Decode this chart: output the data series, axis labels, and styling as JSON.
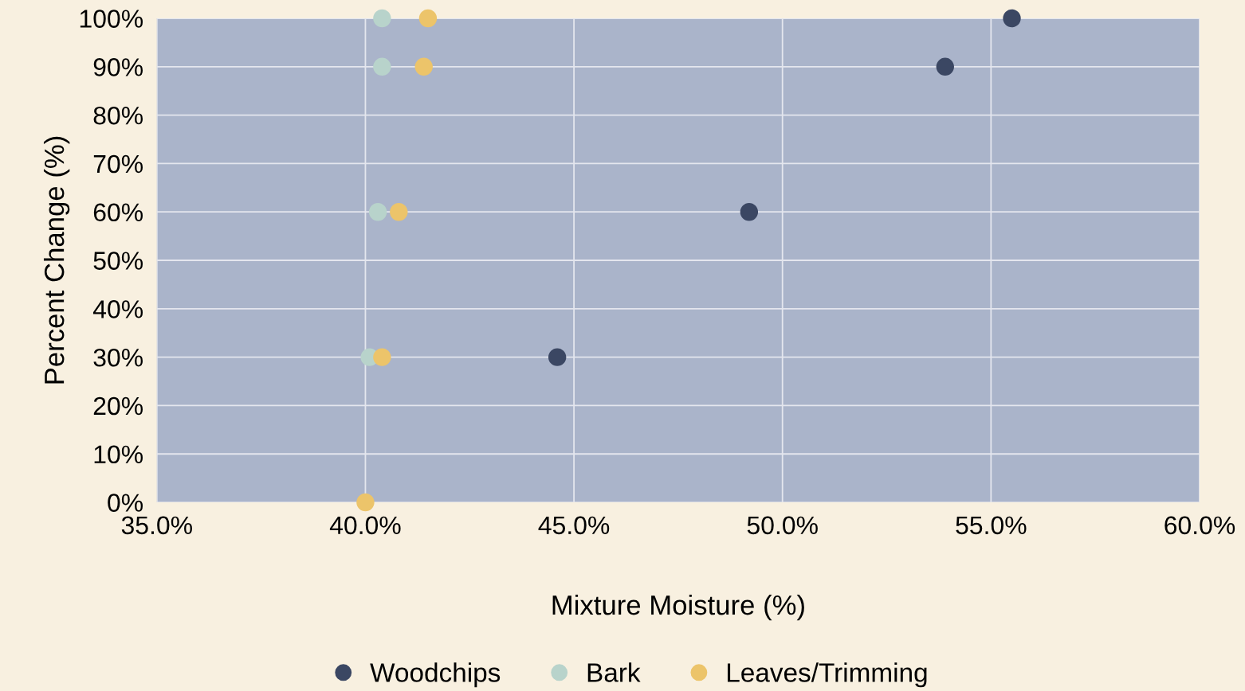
{
  "chart_data": {
    "type": "scatter",
    "xlabel": "Mixture Moisture (%)",
    "ylabel": "Percent Change (%)",
    "xlim": [
      35,
      60
    ],
    "xticks": [
      {
        "value": 35,
        "label": "35.0%"
      },
      {
        "value": 40,
        "label": "40.0%"
      },
      {
        "value": 45,
        "label": "45.0%"
      },
      {
        "value": 50,
        "label": "50.0%"
      },
      {
        "value": 55,
        "label": "55.0%"
      },
      {
        "value": 60,
        "label": "60.0%"
      }
    ],
    "ylim": [
      0,
      100
    ],
    "yticks": [
      {
        "value": 0,
        "label": "0%"
      },
      {
        "value": 10,
        "label": "10%"
      },
      {
        "value": 20,
        "label": "20%"
      },
      {
        "value": 30,
        "label": "30%"
      },
      {
        "value": 40,
        "label": "40%"
      },
      {
        "value": 50,
        "label": "50%"
      },
      {
        "value": 60,
        "label": "60%"
      },
      {
        "value": 70,
        "label": "70%"
      },
      {
        "value": 80,
        "label": "80%"
      },
      {
        "value": 90,
        "label": "90%"
      },
      {
        "value": 100,
        "label": "100%"
      }
    ],
    "grid": true,
    "legend": "bottom",
    "marker": "circle",
    "series": [
      {
        "name": "Woodchips",
        "color": "#3b4763",
        "x": [
          44.6,
          49.2,
          53.9,
          55.5
        ],
        "values": [
          30,
          60,
          90,
          100
        ]
      },
      {
        "name": "Bark",
        "color": "#b8d3cb",
        "x": [
          40.1,
          40.3,
          40.4,
          40.4
        ],
        "values": [
          30,
          60,
          90,
          100
        ]
      },
      {
        "name": "Leaves/Trimming",
        "color": "#ecc46a",
        "x": [
          40.0,
          40.4,
          40.8,
          41.4,
          41.5
        ],
        "values": [
          0,
          30,
          60,
          90,
          100
        ]
      }
    ]
  }
}
